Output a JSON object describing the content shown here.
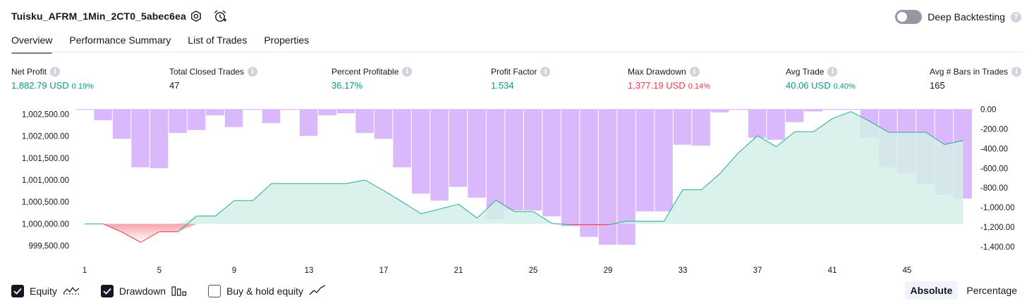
{
  "header": {
    "strategy_name": "Tuisku_AFRM_1Min_2CT0_5abec6ea",
    "settings_icon": "settings-gear-icon",
    "alert_icon": "alarm-clock-plus-icon",
    "deep_backtesting_label": "Deep Backtesting",
    "deep_backtesting_on": false,
    "help_glyph": "?"
  },
  "tabs": [
    {
      "label": "Overview",
      "active": true
    },
    {
      "label": "Performance Summary",
      "active": false
    },
    {
      "label": "List of Trades",
      "active": false
    },
    {
      "label": "Properties",
      "active": false
    }
  ],
  "metrics": [
    {
      "label": "Net Profit",
      "value": "1,882.79 USD",
      "pct": "0.19%",
      "color": "green"
    },
    {
      "label": "Total Closed Trades",
      "value": "47",
      "pct": "",
      "color": "dark"
    },
    {
      "label": "Percent Profitable",
      "value": "36.17%",
      "pct": "",
      "color": "green"
    },
    {
      "label": "Profit Factor",
      "value": "1.534",
      "pct": "",
      "color": "green"
    },
    {
      "label": "Max Drawdown",
      "value": "1,377.19 USD",
      "pct": "0.14%",
      "color": "red"
    },
    {
      "label": "Avg Trade",
      "value": "40.06 USD",
      "pct": "0.40%",
      "color": "green"
    },
    {
      "label": "Avg # Bars in Trades",
      "value": "165",
      "pct": "",
      "color": "dark"
    }
  ],
  "info_glyph": "i",
  "chart_data": {
    "type": "line",
    "x_ticks": [
      "1",
      "5",
      "9",
      "13",
      "17",
      "21",
      "25",
      "29",
      "33",
      "37",
      "41",
      "45"
    ],
    "x_range": [
      1,
      48
    ],
    "equity_baseline": 1000000,
    "left_axis": {
      "ticks": [
        "1,002,500.00",
        "1,002,000.00",
        "1,001,500.00",
        "1,001,000.00",
        "1,000,500.00",
        "1,000,000.00",
        "999,500.00"
      ],
      "range": [
        999300,
        1002700
      ]
    },
    "right_axis": {
      "ticks": [
        "0.00",
        "-200.00",
        "-400.00",
        "-600.00",
        "-800.00",
        "-1,000.00",
        "-1,200.00",
        "-1,400.00"
      ],
      "range": [
        -1480,
        40
      ]
    },
    "series": [
      {
        "name": "Equity",
        "x": [
          1,
          2,
          3,
          4,
          5,
          6,
          7,
          8,
          9,
          10,
          11,
          12,
          13,
          14,
          15,
          16,
          17,
          18,
          19,
          20,
          21,
          22,
          23,
          24,
          25,
          26,
          27,
          28,
          29,
          30,
          31,
          32,
          33,
          34,
          35,
          36,
          37,
          38,
          39,
          40,
          41,
          42,
          43,
          44,
          45,
          46,
          47,
          48
        ],
        "values": [
          1000000,
          1000000,
          999810,
          999580,
          999820,
          999820,
          1000180,
          1000180,
          1000530,
          1000530,
          1000920,
          1000920,
          1000920,
          1000920,
          1000920,
          1001000,
          1000760,
          1000500,
          1000230,
          1000340,
          1000450,
          1000130,
          1000540,
          1000280,
          1000280,
          1000010,
          999980,
          999980,
          999980,
          1000060,
          1000060,
          1000060,
          1000780,
          1000780,
          1001150,
          1001630,
          1002010,
          1001760,
          1002100,
          1002100,
          1002400,
          1002560,
          1002340,
          1002090,
          1002090,
          1002090,
          1001810,
          1001900
        ]
      },
      {
        "name": "Drawdown",
        "x": [
          2,
          3,
          4,
          5,
          6,
          7,
          8,
          9,
          10,
          11,
          12,
          13,
          14,
          15,
          16,
          17,
          18,
          19,
          20,
          21,
          22,
          23,
          24,
          25,
          26,
          27,
          28,
          29,
          30,
          31,
          32,
          33,
          34,
          35,
          36,
          37,
          38,
          39,
          40,
          41,
          42,
          43,
          44,
          45,
          46,
          47,
          48
        ],
        "values": [
          -110,
          -300,
          -590,
          -600,
          -240,
          -210,
          -60,
          -180,
          0,
          -140,
          0,
          -270,
          -60,
          -40,
          -240,
          -300,
          -590,
          -860,
          -930,
          -790,
          -900,
          -1120,
          -1030,
          -1030,
          -1090,
          -1190,
          -1300,
          -1380,
          -1380,
          -1040,
          -1040,
          -360,
          -370,
          -30,
          0,
          -290,
          -310,
          -130,
          -20,
          0,
          0,
          -290,
          -590,
          -650,
          -760,
          -870,
          -910
        ]
      }
    ],
    "colors": {
      "equity_line": "#22ab94",
      "equity_fill": "#d5efe9",
      "equity_neg": "#f23645",
      "drawdown": "#d9b8fb"
    }
  },
  "legend": [
    {
      "label": "Equity",
      "checked": true,
      "icon": "equity-line-icon"
    },
    {
      "label": "Drawdown",
      "checked": true,
      "icon": "drawdown-bars-icon"
    },
    {
      "label": "Buy & hold equity",
      "checked": false,
      "icon": "buy-hold-line-icon"
    }
  ],
  "view_toggle": [
    {
      "label": "Absolute",
      "active": true
    },
    {
      "label": "Percentage",
      "active": false
    }
  ]
}
